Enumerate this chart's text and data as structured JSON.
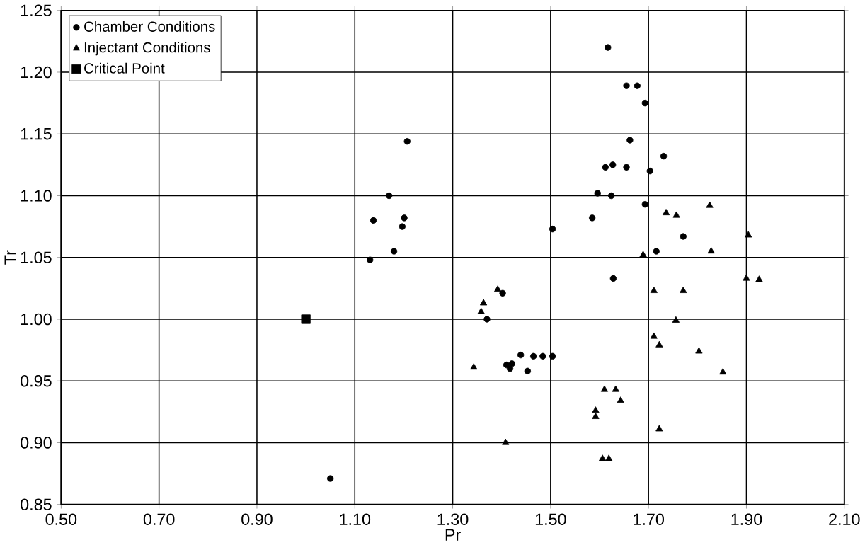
{
  "chart_data": {
    "type": "scatter",
    "xlabel": "Pr",
    "ylabel": "Tr",
    "xlim": [
      0.5,
      2.1
    ],
    "xticks": [
      {
        "value": 0.5,
        "label": "0.50"
      },
      {
        "value": 0.7,
        "label": "0.70"
      },
      {
        "value": 0.9,
        "label": "0.90"
      },
      {
        "value": 1.1,
        "label": "1.10"
      },
      {
        "value": 1.3,
        "label": "1.30"
      },
      {
        "value": 1.5,
        "label": "1.50"
      },
      {
        "value": 1.7,
        "label": "1.70"
      },
      {
        "value": 1.9,
        "label": "1.90"
      },
      {
        "value": 2.1,
        "label": "2.10"
      }
    ],
    "ylim": [
      0.85,
      1.25
    ],
    "yticks": [
      {
        "value": 0.85,
        "label": "0.85"
      },
      {
        "value": 0.9,
        "label": "0.90"
      },
      {
        "value": 0.95,
        "label": "0.95"
      },
      {
        "value": 1.0,
        "label": "1.00"
      },
      {
        "value": 1.05,
        "label": "1.05"
      },
      {
        "value": 1.1,
        "label": "1.10"
      },
      {
        "value": 1.15,
        "label": "1.15"
      },
      {
        "value": 1.2,
        "label": "1.20"
      },
      {
        "value": 1.25,
        "label": "1.25"
      }
    ],
    "grid": true,
    "legend": "top left",
    "series": [
      {
        "name": "Chamber Conditions",
        "color": "#000000",
        "marker": "circle",
        "x": [
          1.05,
          1.131,
          1.138,
          1.17,
          1.18,
          1.197,
          1.201,
          1.207,
          1.37,
          1.402,
          1.41,
          1.417,
          1.421,
          1.439,
          1.453,
          1.465,
          1.484,
          1.504,
          1.504,
          1.585,
          1.596,
          1.612,
          1.617,
          1.624,
          1.627,
          1.628,
          1.655,
          1.655,
          1.662,
          1.677,
          1.693,
          1.693,
          1.703,
          1.716,
          1.731,
          1.771
        ],
        "values": [
          0.871,
          1.048,
          1.08,
          1.1,
          1.055,
          1.075,
          1.082,
          1.144,
          1.0,
          1.021,
          0.963,
          0.96,
          0.964,
          0.971,
          0.958,
          0.97,
          0.97,
          0.97,
          1.073,
          1.082,
          1.102,
          1.123,
          1.22,
          1.1,
          1.125,
          1.033,
          1.189,
          1.123,
          1.145,
          1.189,
          1.175,
          1.093,
          1.12,
          1.055,
          1.132,
          1.067
        ]
      },
      {
        "name": "Injectant Conditions",
        "color": "#000000",
        "marker": "triangle",
        "x": [
          1.343,
          1.358,
          1.363,
          1.392,
          1.408,
          1.592,
          1.592,
          1.606,
          1.61,
          1.619,
          1.633,
          1.643,
          1.689,
          1.711,
          1.711,
          1.722,
          1.722,
          1.736,
          1.756,
          1.757,
          1.771,
          1.803,
          1.825,
          1.828,
          1.852,
          1.9,
          1.904,
          1.926
        ],
        "values": [
          0.961,
          1.006,
          1.013,
          1.024,
          0.9,
          0.921,
          0.926,
          0.887,
          0.943,
          0.887,
          0.943,
          0.934,
          1.052,
          1.023,
          0.986,
          0.979,
          0.911,
          1.086,
          0.999,
          1.084,
          1.023,
          0.974,
          1.092,
          1.055,
          0.957,
          1.033,
          1.068,
          1.032
        ]
      },
      {
        "name": "Critical Point",
        "color": "#000000",
        "marker": "square",
        "x": [
          1.0
        ],
        "values": [
          1.0
        ]
      }
    ]
  }
}
